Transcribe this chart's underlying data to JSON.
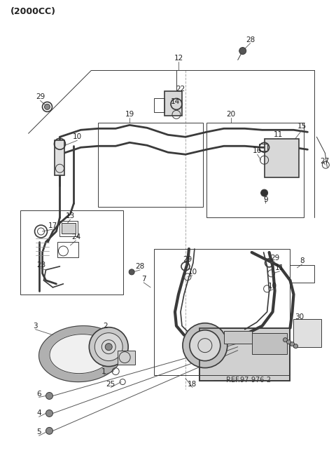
{
  "title": "(2000CC)",
  "bg_color": "#ffffff",
  "lc": "#3a3a3a",
  "figsize": [
    4.8,
    6.56
  ],
  "dpi": 100
}
